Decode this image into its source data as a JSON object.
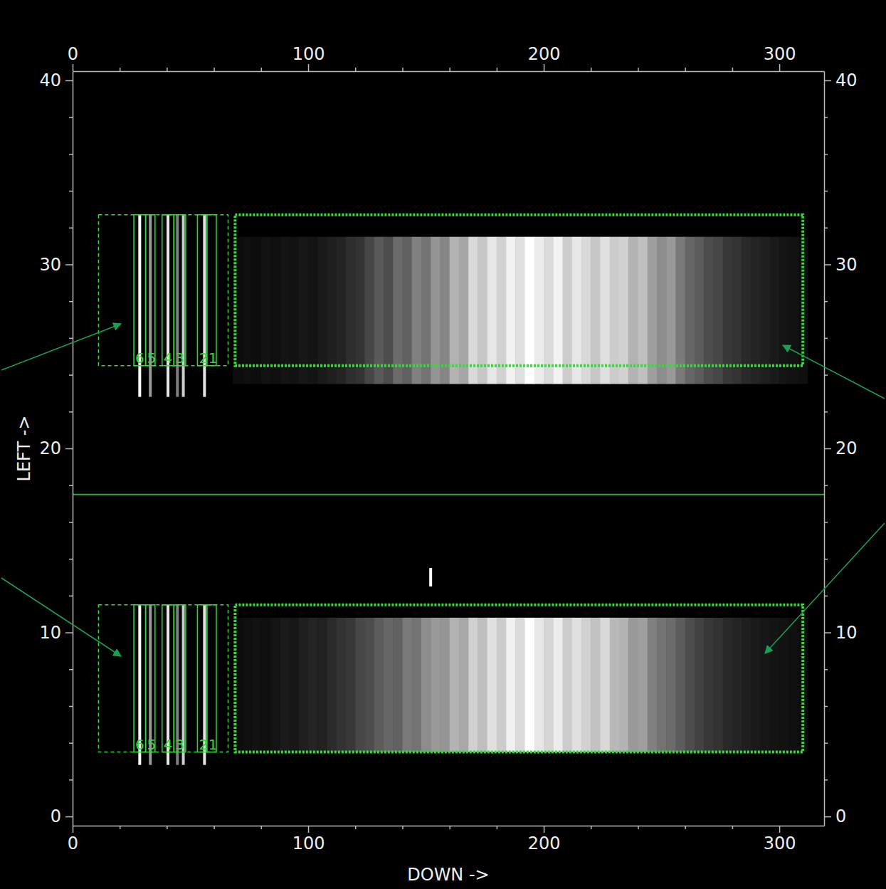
{
  "chart_data": {
    "type": "image",
    "x_label": "DOWN ->",
    "y_label": "LEFT ->",
    "xlim": [
      0,
      319
    ],
    "ylim": [
      -0.5,
      40.5
    ],
    "xticks": [
      0,
      100,
      200,
      300
    ],
    "yticks": [
      0,
      10,
      20,
      30,
      40
    ],
    "xminorticks": [
      20,
      40,
      60,
      80,
      120,
      140,
      160,
      180,
      220,
      240,
      260,
      280
    ],
    "yminorticks": [
      2,
      4,
      6,
      8,
      12,
      14,
      16,
      18,
      22,
      24,
      26,
      28,
      32,
      34,
      36,
      38
    ],
    "zlim": [
      0,
      1
    ],
    "color": "#33dd33",
    "x_bins": [
      68,
      72,
      76,
      80,
      84,
      88,
      92,
      96,
      100,
      104,
      108,
      112,
      116,
      120,
      124,
      128,
      132,
      136,
      140,
      144,
      148,
      152,
      156,
      160,
      164,
      168,
      172,
      176,
      180,
      184,
      188,
      192,
      196,
      200,
      204,
      208,
      212,
      216,
      220,
      224,
      228,
      232,
      236,
      240,
      244,
      248,
      252,
      256,
      260,
      264,
      268,
      272,
      276,
      280,
      284,
      288,
      292,
      296,
      300,
      304,
      308,
      312
    ],
    "spectra": [
      {
        "y": [
          23.5,
          31.5
        ],
        "lamp_y": [
          22.8,
          32.7
        ],
        "box_y": [
          24.5,
          32.7
        ],
        "values": [
          0.05,
          0.06,
          0.05,
          0.07,
          0.06,
          0.08,
          0.07,
          0.09,
          0.08,
          0.1,
          0.12,
          0.14,
          0.18,
          0.2,
          0.28,
          0.35,
          0.3,
          0.42,
          0.38,
          0.5,
          0.45,
          0.58,
          0.52,
          0.7,
          0.65,
          0.85,
          0.78,
          0.9,
          0.82,
          0.95,
          0.88,
          1.0,
          0.92,
          0.86,
          0.95,
          0.8,
          0.9,
          0.85,
          0.78,
          0.88,
          0.8,
          0.82,
          0.7,
          0.75,
          0.62,
          0.55,
          0.6,
          0.48,
          0.4,
          0.36,
          0.3,
          0.28,
          0.22,
          0.2,
          0.16,
          0.14,
          0.12,
          0.1,
          0.08,
          0.07,
          0.06
        ]
      },
      {
        "y": [
          3.5,
          10.8
        ],
        "lamp_y": [
          2.8,
          11.5
        ],
        "box_y": [
          3.5,
          11.5
        ],
        "values": [
          0.05,
          0.06,
          0.07,
          0.06,
          0.08,
          0.1,
          0.09,
          0.12,
          0.14,
          0.13,
          0.17,
          0.2,
          0.22,
          0.28,
          0.3,
          0.36,
          0.4,
          0.38,
          0.48,
          0.45,
          0.55,
          0.6,
          0.58,
          0.7,
          0.66,
          0.82,
          0.75,
          0.88,
          0.8,
          0.94,
          0.86,
          1.0,
          0.9,
          0.84,
          0.93,
          0.8,
          0.88,
          0.82,
          0.76,
          0.85,
          0.72,
          0.7,
          0.6,
          0.62,
          0.5,
          0.45,
          0.42,
          0.36,
          0.3,
          0.26,
          0.22,
          0.2,
          0.16,
          0.14,
          0.12,
          0.1,
          0.09,
          0.08,
          0.07,
          0.06,
          0.05
        ]
      }
    ],
    "lamp_lines": {
      "x": [
        28.5,
        33,
        40.5,
        44.5,
        47,
        56
      ],
      "values": [
        1.0,
        0.6,
        0.9,
        0.5,
        0.8,
        0.9
      ]
    },
    "hot_pixels": {
      "x": [
        152
      ],
      "y": [
        13
      ]
    },
    "extraction_x": [
      69,
      310
    ],
    "background_x": [
      11,
      66
    ],
    "lamp_boxes": [
      {
        "label": "6",
        "x": [
          26,
          31
        ]
      },
      {
        "label": "5",
        "x": [
          31,
          35
        ]
      },
      {
        "label": "4",
        "x": [
          38,
          43
        ]
      },
      {
        "label": "3",
        "x": [
          43,
          48
        ]
      },
      {
        "label": "2",
        "x": [
          53,
          57
        ]
      },
      {
        "label": "1",
        "x": [
          57,
          61
        ]
      }
    ],
    "divider_y": 17.5
  }
}
